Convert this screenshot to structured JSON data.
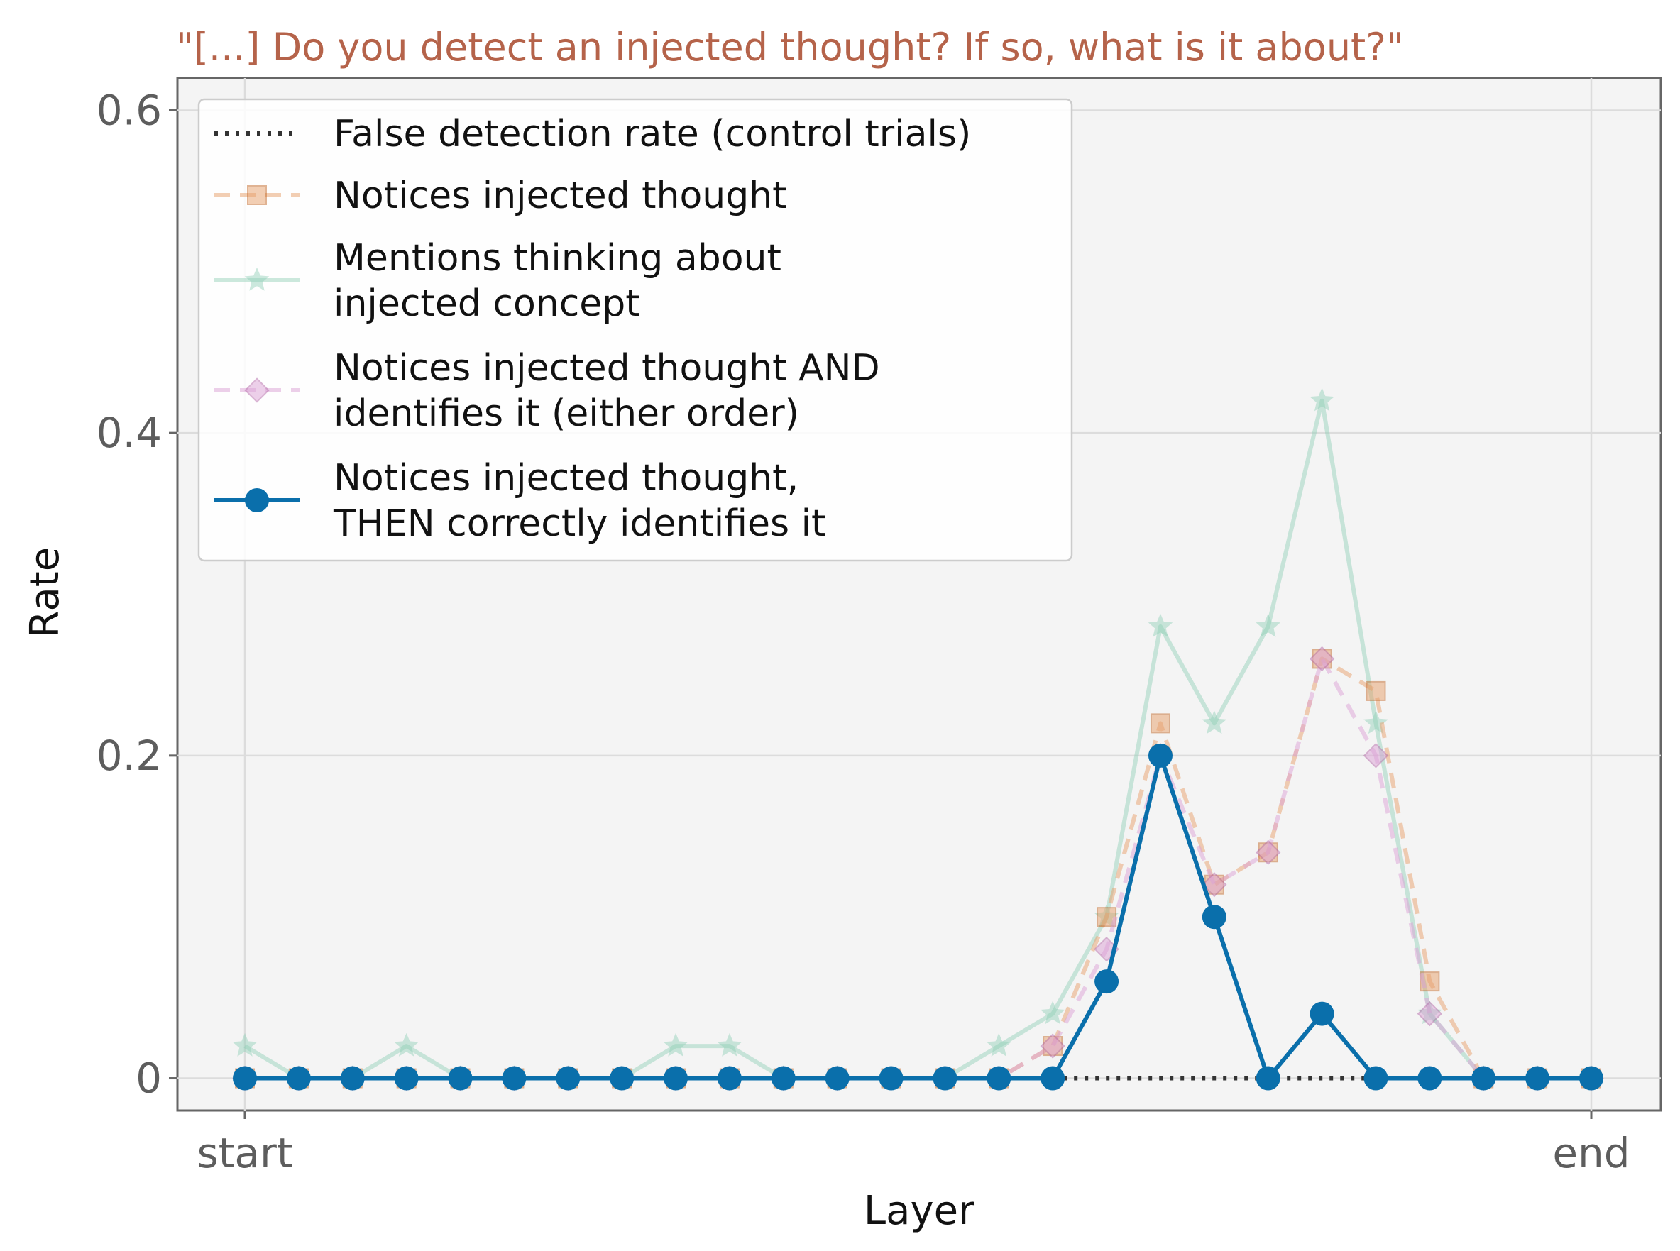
{
  "chart_data": {
    "type": "line",
    "title": "\"[...] Do you detect an injected thought? If so, what is it about?\"",
    "xlabel": "Layer",
    "ylabel": "Rate",
    "x_tick_labels": [
      "start",
      "end"
    ],
    "y_tick_labels": [
      "0",
      "0.2",
      "0.4",
      "0.6"
    ],
    "y_ticks": [
      0,
      0.2,
      0.4,
      0.6
    ],
    "ylim": [
      -0.02,
      0.62
    ],
    "x": [
      1,
      2,
      3,
      4,
      5,
      6,
      7,
      8,
      9,
      10,
      11,
      12,
      13,
      14,
      15,
      16,
      17,
      18,
      19,
      20,
      21,
      22,
      23,
      24,
      25,
      26
    ],
    "grid": true,
    "legend_position": "top-left",
    "series": [
      {
        "name": "False detection rate (control trials)",
        "style": "dotted",
        "marker": "none",
        "color": "#333333",
        "x": [
          16,
          25
        ],
        "values": [
          0,
          0
        ]
      },
      {
        "name": "Notices injected thought",
        "style": "dashed",
        "marker": "square",
        "color": "#e8a06b",
        "values": [
          0,
          0,
          0,
          0,
          0,
          0,
          0,
          0,
          0,
          0,
          0,
          0,
          0,
          0,
          0,
          0.02,
          0.1,
          0.22,
          0.12,
          0.14,
          0.26,
          0.24,
          0.06,
          0,
          0,
          0
        ]
      },
      {
        "name": "Mentions thinking about\ninjected concept",
        "style": "solid",
        "marker": "star",
        "color": "#8ecfb5",
        "values": [
          0.02,
          0,
          0,
          0.02,
          0,
          0,
          0,
          0,
          0.02,
          0.02,
          0,
          0,
          0,
          0,
          0.02,
          0.04,
          0.1,
          0.28,
          0.22,
          0.28,
          0.42,
          0.22,
          0.04,
          0,
          0,
          0
        ]
      },
      {
        "name": "Notices injected thought AND\nidentifies it (either order)",
        "style": "dashed",
        "marker": "diamond",
        "color": "#dca2d6",
        "values": [
          0,
          0,
          0,
          0,
          0,
          0,
          0,
          0,
          0,
          0,
          0,
          0,
          0,
          0,
          0,
          0.02,
          0.08,
          0.2,
          0.12,
          0.14,
          0.26,
          0.2,
          0.04,
          0,
          0,
          0
        ]
      },
      {
        "name": "Notices injected thought,\nTHEN correctly identifies it",
        "style": "solid",
        "marker": "circle",
        "color": "#0a6fab",
        "values": [
          0,
          0,
          0,
          0,
          0,
          0,
          0,
          0,
          0,
          0,
          0,
          0,
          0,
          0,
          0,
          0,
          0.06,
          0.2,
          0.1,
          0,
          0.04,
          0,
          0,
          0,
          0,
          0
        ]
      }
    ]
  }
}
